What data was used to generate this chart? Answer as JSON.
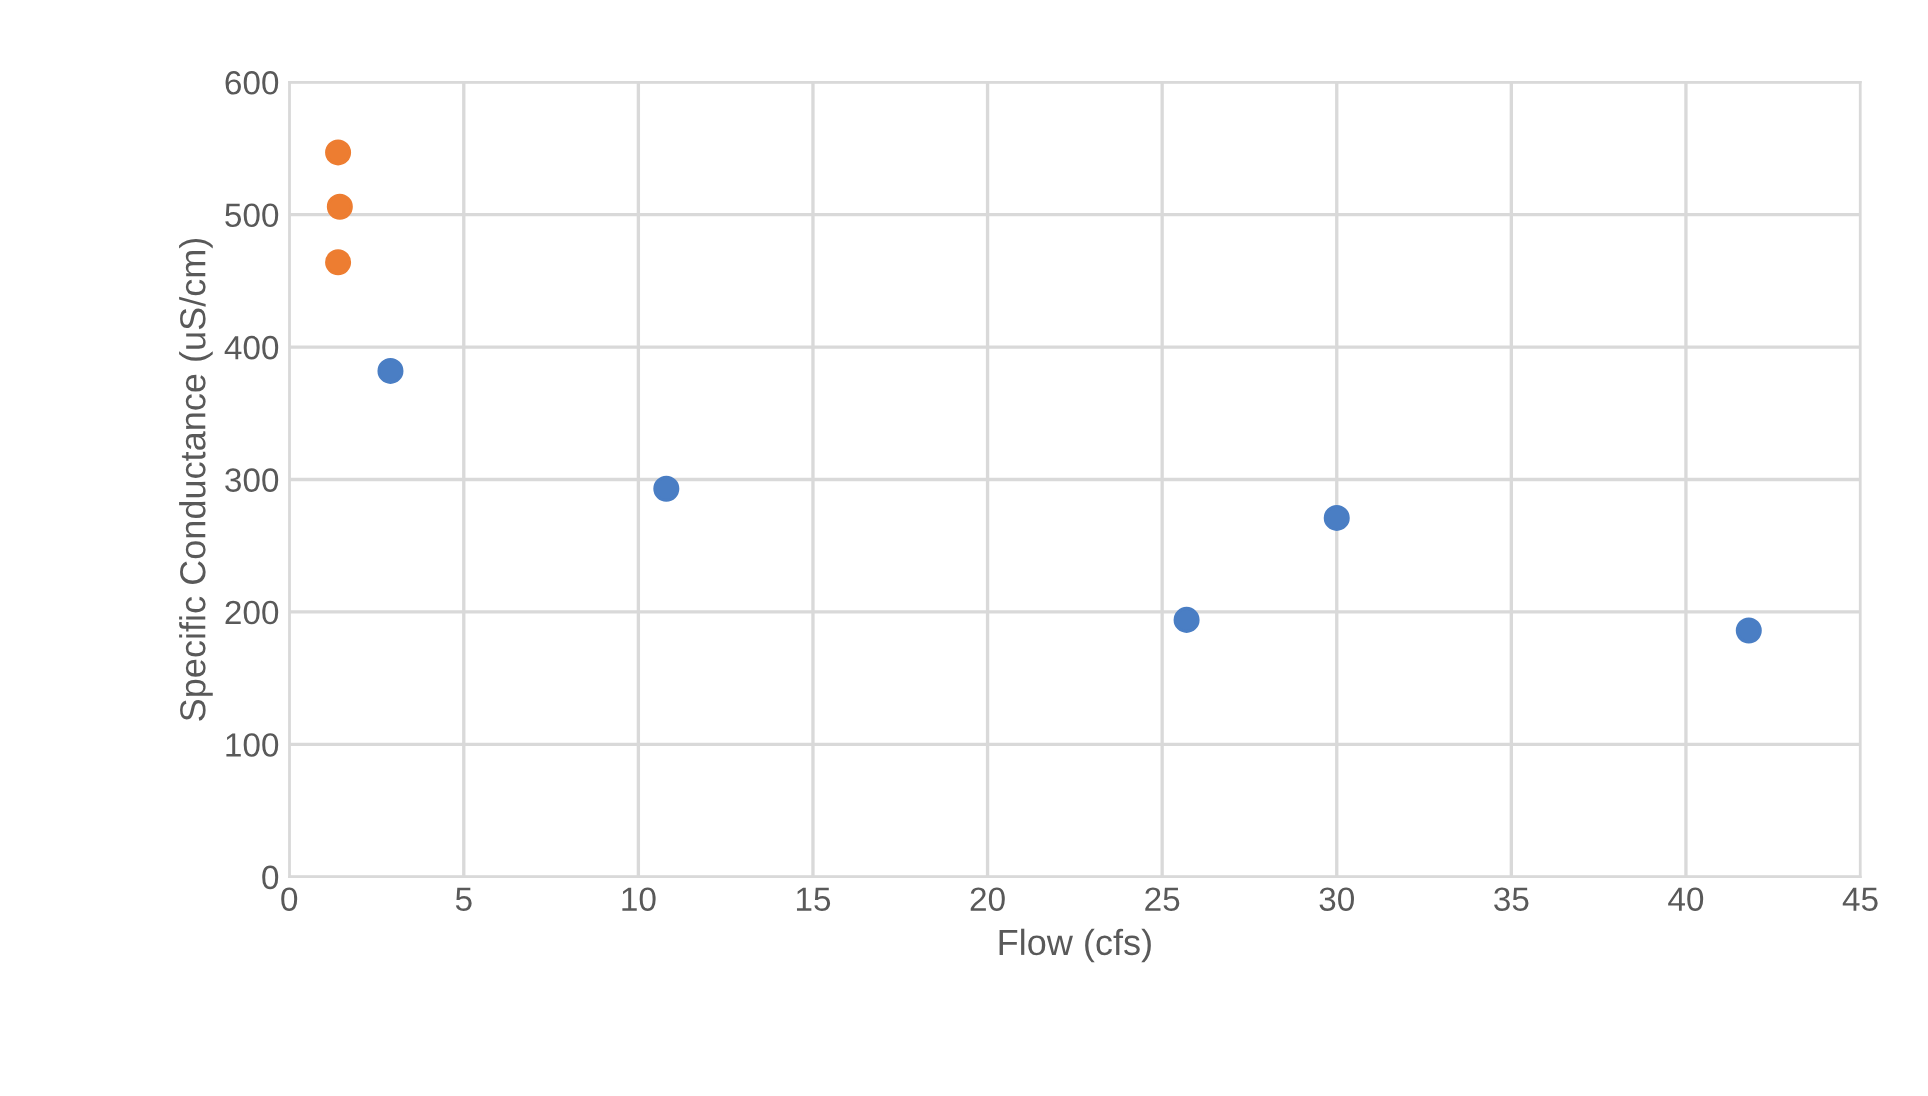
{
  "chart_data": {
    "type": "scatter",
    "xlabel": "Flow (cfs)",
    "ylabel": "Specific Conductance (uS/cm)",
    "series": [
      {
        "color": "#4a7ec4",
        "x": [
          2.9,
          10.8,
          25.7,
          30.0,
          41.8
        ],
        "values": [
          382,
          293,
          194,
          271,
          186
        ]
      },
      {
        "color": "#ed7d31",
        "x": [
          1.4,
          1.45,
          1.4
        ],
        "values": [
          547,
          506,
          464
        ]
      }
    ],
    "xlim": [
      0,
      45
    ],
    "xticks": [
      0,
      5,
      10,
      15,
      20,
      25,
      30,
      35,
      40,
      45
    ],
    "ylim": [
      0,
      600
    ],
    "yticks": [
      0,
      100,
      200,
      300,
      400,
      500,
      600
    ],
    "grid": true,
    "marker": "circle"
  }
}
